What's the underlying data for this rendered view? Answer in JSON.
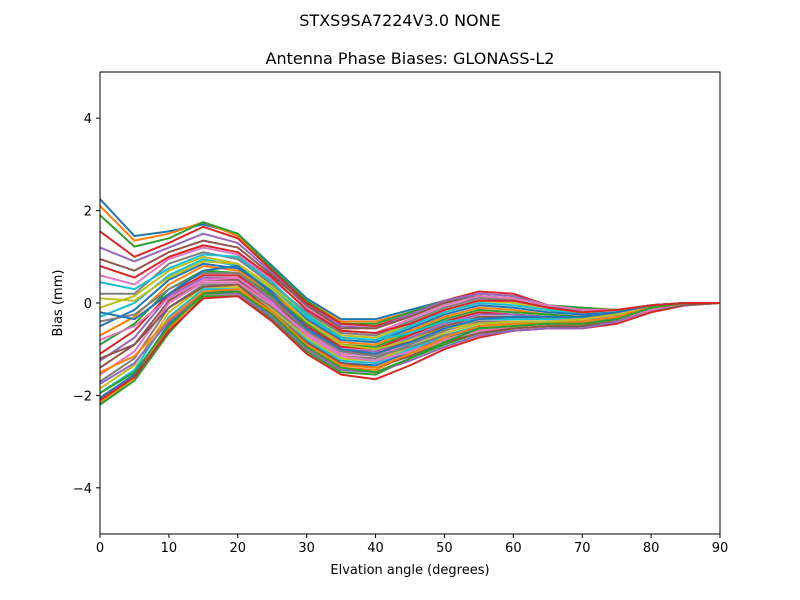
{
  "figure": {
    "suptitle": "STXS9SA7224V3.0 NONE"
  },
  "chart_data": {
    "type": "line",
    "title": "Antenna Phase Biases: GLONASS-L2",
    "xlabel": "Elvation angle (degrees)",
    "ylabel": "Bias (mm)",
    "xlim": [
      0,
      90
    ],
    "ylim": [
      -5,
      5
    ],
    "x_ticks": [
      0,
      10,
      20,
      30,
      40,
      50,
      60,
      70,
      80,
      90
    ],
    "x_tick_labels": [
      "0",
      "10",
      "20",
      "30",
      "40",
      "50",
      "60",
      "70",
      "80",
      "90"
    ],
    "y_ticks": [
      -4,
      -2,
      0,
      2,
      4
    ],
    "y_tick_labels": [
      "−4",
      "−2",
      "0",
      "2",
      "4"
    ],
    "grid": false,
    "legend": "none",
    "x": [
      0,
      5,
      10,
      15,
      20,
      25,
      30,
      35,
      40,
      45,
      50,
      55,
      60,
      65,
      70,
      75,
      80,
      85,
      90
    ],
    "colors": [
      "#1f77b4",
      "#ff7f0e",
      "#2ca02c",
      "#d62728",
      "#9467bd",
      "#8c564b",
      "#e377c2",
      "#7f7f7f",
      "#bcbd22",
      "#17becf"
    ],
    "series": [
      {
        "values": [
          2.25,
          1.45,
          1.55,
          1.7,
          1.5,
          0.8,
          0.1,
          -0.35,
          -0.35,
          -0.15,
          0.05,
          0.1,
          0.05,
          -0.1,
          -0.15,
          -0.15,
          -0.05,
          0.0,
          0.0
        ]
      },
      {
        "values": [
          2.1,
          1.35,
          1.5,
          1.75,
          1.45,
          0.75,
          0.05,
          -0.4,
          -0.4,
          -0.2,
          0.0,
          0.15,
          0.1,
          -0.05,
          -0.15,
          -0.15,
          -0.05,
          0.0,
          0.0
        ]
      },
      {
        "values": [
          1.9,
          1.22,
          1.4,
          1.75,
          1.5,
          0.75,
          0.05,
          -0.45,
          -0.45,
          -0.2,
          0.05,
          0.15,
          0.1,
          -0.05,
          -0.1,
          -0.15,
          -0.05,
          0.0,
          0.0
        ]
      },
      {
        "values": [
          1.55,
          1.0,
          1.3,
          1.65,
          1.4,
          0.7,
          0.0,
          -0.45,
          -0.5,
          -0.25,
          0.05,
          0.25,
          0.2,
          -0.05,
          -0.15,
          -0.15,
          -0.05,
          0.0,
          0.0
        ]
      },
      {
        "values": [
          1.2,
          0.9,
          1.2,
          1.5,
          1.3,
          0.65,
          -0.05,
          -0.5,
          -0.55,
          -0.25,
          0.05,
          0.2,
          0.15,
          -0.05,
          -0.15,
          -0.15,
          -0.05,
          0.0,
          0.0
        ]
      },
      {
        "values": [
          0.95,
          0.7,
          1.1,
          1.35,
          1.2,
          0.6,
          -0.05,
          -0.55,
          -0.55,
          -0.3,
          0.0,
          0.15,
          0.1,
          -0.05,
          -0.15,
          -0.15,
          -0.05,
          0.0,
          0.0
        ]
      },
      {
        "values": [
          0.6,
          0.4,
          0.95,
          1.2,
          1.05,
          0.5,
          -0.1,
          -0.6,
          -0.65,
          -0.35,
          -0.05,
          0.15,
          0.1,
          -0.05,
          -0.15,
          -0.15,
          -0.05,
          0.0,
          0.0
        ]
      },
      {
        "values": [
          0.2,
          0.2,
          0.85,
          1.1,
          0.95,
          0.4,
          -0.2,
          -0.65,
          -0.7,
          -0.4,
          -0.1,
          0.1,
          0.05,
          -0.1,
          -0.2,
          -0.15,
          -0.05,
          0.0,
          0.0
        ]
      },
      {
        "values": [
          -0.1,
          0.15,
          0.7,
          1.0,
          0.85,
          0.35,
          -0.25,
          -0.7,
          -0.75,
          -0.45,
          -0.15,
          0.05,
          0.0,
          -0.15,
          -0.2,
          -0.15,
          -0.05,
          0.0,
          0.0
        ]
      },
      {
        "values": [
          -0.3,
          0.0,
          0.6,
          0.95,
          0.8,
          0.3,
          -0.3,
          -0.75,
          -0.8,
          -0.5,
          -0.2,
          0.0,
          -0.05,
          -0.15,
          -0.25,
          -0.2,
          -0.05,
          0.0,
          0.0
        ]
      },
      {
        "values": [
          -0.5,
          -0.15,
          0.5,
          0.85,
          0.75,
          0.25,
          -0.35,
          -0.8,
          -0.85,
          -0.55,
          -0.25,
          -0.05,
          -0.1,
          -0.2,
          -0.25,
          -0.2,
          -0.05,
          0.0,
          0.0
        ]
      },
      {
        "values": [
          -0.7,
          -0.3,
          0.4,
          0.8,
          0.7,
          0.2,
          -0.4,
          -0.85,
          -0.9,
          -0.6,
          -0.3,
          -0.1,
          -0.15,
          -0.25,
          -0.3,
          -0.2,
          -0.05,
          0.0,
          0.0
        ]
      },
      {
        "values": [
          -0.9,
          -0.45,
          0.3,
          0.7,
          0.65,
          0.15,
          -0.45,
          -0.9,
          -0.95,
          -0.65,
          -0.35,
          -0.15,
          -0.2,
          -0.25,
          -0.3,
          -0.2,
          -0.05,
          0.0,
          0.0
        ]
      },
      {
        "values": [
          -1.1,
          -0.6,
          0.2,
          0.6,
          0.6,
          0.1,
          -0.5,
          -0.95,
          -1.0,
          -0.7,
          -0.4,
          -0.2,
          -0.25,
          -0.3,
          -0.3,
          -0.25,
          -0.1,
          0.0,
          0.0
        ]
      },
      {
        "values": [
          -1.25,
          -0.75,
          0.15,
          0.55,
          0.55,
          0.05,
          -0.55,
          -1.0,
          -1.05,
          -0.75,
          -0.45,
          -0.25,
          -0.25,
          -0.3,
          -0.35,
          -0.25,
          -0.1,
          0.0,
          0.0
        ]
      },
      {
        "values": [
          -1.4,
          -0.9,
          0.05,
          0.5,
          0.5,
          0.0,
          -0.6,
          -1.05,
          -1.1,
          -0.8,
          -0.5,
          -0.3,
          -0.3,
          -0.35,
          -0.35,
          -0.25,
          -0.1,
          0.0,
          0.0
        ]
      },
      {
        "values": [
          -1.55,
          -1.05,
          0.0,
          0.45,
          0.45,
          -0.05,
          -0.65,
          -1.1,
          -1.15,
          -0.85,
          -0.55,
          -0.35,
          -0.35,
          -0.35,
          -0.35,
          -0.25,
          -0.1,
          0.0,
          0.0
        ]
      },
      {
        "values": [
          -1.7,
          -1.2,
          -0.1,
          0.4,
          0.4,
          -0.1,
          -0.7,
          -1.15,
          -1.2,
          -0.9,
          -0.6,
          -0.4,
          -0.4,
          -0.4,
          -0.4,
          -0.3,
          -0.1,
          0.0,
          0.0
        ]
      },
      {
        "values": [
          -1.85,
          -1.35,
          -0.2,
          0.35,
          0.35,
          -0.15,
          -0.75,
          -1.2,
          -1.25,
          -0.95,
          -0.65,
          -0.45,
          -0.45,
          -0.4,
          -0.4,
          -0.3,
          -0.1,
          0.0,
          0.0
        ]
      },
      {
        "values": [
          -1.95,
          -1.45,
          -0.3,
          0.3,
          0.3,
          -0.2,
          -0.8,
          -1.25,
          -1.3,
          -1.0,
          -0.7,
          -0.5,
          -0.45,
          -0.45,
          -0.4,
          -0.3,
          -0.1,
          0.0,
          0.0
        ]
      },
      {
        "values": [
          -2.05,
          -1.55,
          -0.45,
          0.25,
          0.25,
          -0.25,
          -0.85,
          -1.3,
          -1.35,
          -1.05,
          -0.75,
          -0.55,
          -0.5,
          -0.45,
          -0.45,
          -0.35,
          -0.1,
          0.0,
          0.0
        ]
      },
      {
        "values": [
          -2.15,
          -1.62,
          -0.55,
          0.2,
          0.2,
          -0.3,
          -0.95,
          -1.4,
          -1.45,
          -1.1,
          -0.8,
          -0.6,
          -0.55,
          -0.5,
          -0.45,
          -0.35,
          -0.15,
          0.0,
          0.0
        ]
      },
      {
        "values": [
          -2.2,
          -1.68,
          -0.65,
          0.15,
          0.15,
          -0.35,
          -1.05,
          -1.5,
          -1.55,
          -1.2,
          -0.9,
          -0.65,
          -0.6,
          -0.55,
          -0.5,
          -0.4,
          -0.15,
          0.0,
          0.0
        ]
      },
      {
        "values": [
          -2.1,
          -1.6,
          -0.6,
          0.1,
          0.15,
          -0.4,
          -1.1,
          -1.55,
          -1.65,
          -1.35,
          -1.0,
          -0.75,
          -0.6,
          -0.55,
          -0.55,
          -0.45,
          -0.2,
          -0.05,
          0.0
        ]
      },
      {
        "values": [
          -1.75,
          -1.3,
          -0.4,
          0.2,
          0.2,
          -0.3,
          -1.0,
          -1.45,
          -1.5,
          -1.25,
          -0.95,
          -0.7,
          -0.6,
          -0.55,
          -0.55,
          -0.4,
          -0.15,
          -0.05,
          0.0
        ]
      },
      {
        "values": [
          -1.2,
          -0.9,
          -0.1,
          0.35,
          0.4,
          -0.2,
          -0.85,
          -1.3,
          -1.4,
          -1.15,
          -0.85,
          -0.65,
          -0.55,
          -0.5,
          -0.5,
          -0.35,
          -0.15,
          -0.05,
          0.0
        ]
      },
      {
        "values": [
          -0.8,
          -0.5,
          0.1,
          0.5,
          0.55,
          0.0,
          -0.7,
          -1.15,
          -1.25,
          -1.05,
          -0.8,
          -0.6,
          -0.5,
          -0.45,
          -0.45,
          -0.35,
          -0.15,
          0.0,
          0.0
        ]
      },
      {
        "values": [
          -0.4,
          -0.25,
          0.3,
          0.65,
          0.65,
          0.1,
          -0.6,
          -1.05,
          -1.15,
          -0.95,
          -0.7,
          -0.55,
          -0.5,
          -0.45,
          -0.4,
          -0.3,
          -0.1,
          0.0,
          0.0
        ]
      },
      {
        "values": [
          0.1,
          0.05,
          0.55,
          0.9,
          0.85,
          0.3,
          -0.4,
          -0.9,
          -1.0,
          -0.8,
          -0.55,
          -0.45,
          -0.4,
          -0.4,
          -0.35,
          -0.25,
          -0.1,
          0.0,
          0.0
        ]
      },
      {
        "values": [
          0.45,
          0.3,
          0.75,
          1.05,
          1.0,
          0.45,
          -0.25,
          -0.75,
          -0.8,
          -0.65,
          -0.4,
          -0.35,
          -0.35,
          -0.35,
          -0.3,
          -0.2,
          -0.05,
          0.0,
          0.0
        ]
      },
      {
        "values": [
          -0.2,
          -0.35,
          0.2,
          0.7,
          0.8,
          0.2,
          -0.55,
          -1.0,
          -1.1,
          -0.85,
          -0.55,
          -0.35,
          -0.3,
          -0.3,
          -0.3,
          -0.2,
          -0.05,
          0.0,
          0.0
        ]
      },
      {
        "values": [
          -1.5,
          -1.15,
          -0.35,
          0.25,
          0.3,
          -0.2,
          -0.9,
          -1.35,
          -1.4,
          -1.1,
          -0.75,
          -0.5,
          -0.45,
          -0.45,
          -0.4,
          -0.3,
          -0.1,
          0.0,
          0.0
        ]
      },
      {
        "values": [
          -1.95,
          -1.5,
          -0.5,
          0.2,
          0.25,
          -0.25,
          -0.95,
          -1.4,
          -1.5,
          -1.2,
          -0.85,
          -0.55,
          -0.5,
          -0.45,
          -0.45,
          -0.35,
          -0.1,
          0.0,
          0.0
        ]
      },
      {
        "values": [
          0.8,
          0.55,
          1.0,
          1.25,
          1.1,
          0.55,
          -0.15,
          -0.6,
          -0.65,
          -0.45,
          -0.15,
          0.05,
          0.05,
          -0.1,
          -0.2,
          -0.15,
          -0.05,
          0.0,
          0.0
        ]
      }
    ]
  }
}
